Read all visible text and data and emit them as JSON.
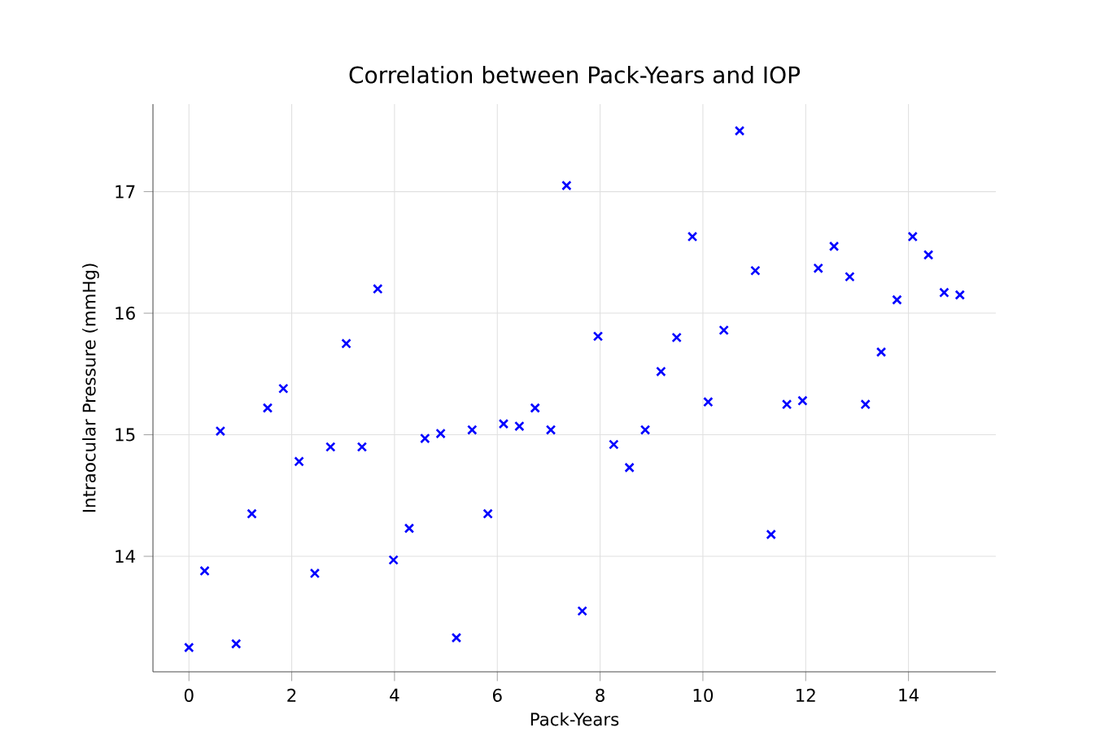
{
  "chart_data": {
    "type": "scatter",
    "title": "Correlation between Pack-Years and IOP",
    "xlabel": "Pack-Years",
    "ylabel": "Intraocular Pressure (mmHg)",
    "x": [
      0,
      0.306,
      0.612,
      0.918,
      1.224,
      1.531,
      1.837,
      2.143,
      2.449,
      2.755,
      3.061,
      3.367,
      3.673,
      3.98,
      4.286,
      4.592,
      4.898,
      5.204,
      5.51,
      5.816,
      6.122,
      6.429,
      6.735,
      7.041,
      7.347,
      7.653,
      7.959,
      8.265,
      8.571,
      8.878,
      9.184,
      9.49,
      9.796,
      10.102,
      10.408,
      10.714,
      11.02,
      11.327,
      11.633,
      11.939,
      12.245,
      12.551,
      12.857,
      13.163,
      13.469,
      13.776,
      14.082,
      14.388,
      14.694,
      15
    ],
    "series": [
      {
        "color": "#0000ff",
        "values": [
          13.25,
          13.88,
          15.03,
          13.28,
          14.35,
          15.22,
          15.38,
          14.78,
          13.86,
          14.9,
          15.75,
          14.9,
          16.2,
          13.97,
          14.23,
          14.97,
          15.01,
          13.33,
          15.04,
          14.35,
          15.09,
          15.07,
          15.22,
          15.04,
          17.05,
          13.55,
          15.81,
          14.92,
          14.73,
          15.04,
          15.52,
          15.8,
          16.63,
          15.27,
          15.86,
          17.5,
          16.35,
          14.18,
          15.25,
          15.28,
          16.37,
          16.55,
          16.3,
          15.25,
          15.68,
          16.11,
          16.63,
          16.48,
          16.17,
          16.15
        ]
      }
    ],
    "xlim": [
      -0.7,
      15.7
    ],
    "ylim": [
      13.05,
      17.72
    ],
    "xticks": [
      0,
      2,
      4,
      6,
      8,
      10,
      12,
      14
    ],
    "yticks": [
      14,
      15,
      16,
      17
    ],
    "grid": true,
    "marker": "cross"
  }
}
